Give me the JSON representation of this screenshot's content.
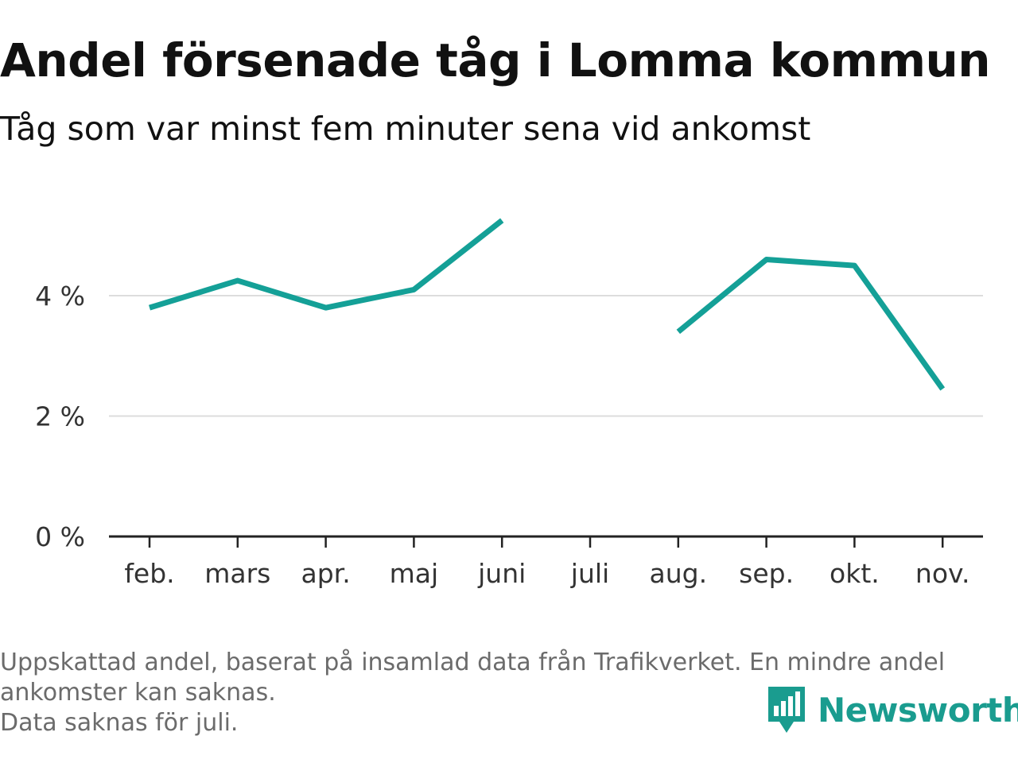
{
  "header": {
    "title": "Andel försenade tåg i Lomma kommun",
    "subtitle": "Tåg som var minst fem minuter sena vid ankomst"
  },
  "footnote": {
    "line1": "Uppskattad andel, baserat på insamlad data från Trafikverket. En mindre andel",
    "line2": "ankomster kan saknas.",
    "line3": "Data saknas för juli."
  },
  "brand": {
    "name": "Newsworthy",
    "icon": "newsworthy-logo-icon",
    "color": "#1a9c8f"
  },
  "colors": {
    "line": "#14a097",
    "grid": "#dddddd",
    "axis": "#222222"
  },
  "chart_data": {
    "type": "line",
    "title": "Andel försenade tåg i Lomma kommun",
    "subtitle": "Tåg som var minst fem minuter sena vid ankomst",
    "categories": [
      "feb.",
      "mars",
      "apr.",
      "maj",
      "juni",
      "juli",
      "aug.",
      "sep.",
      "okt.",
      "nov."
    ],
    "series": [
      {
        "values": [
          3.8,
          4.25,
          3.8,
          4.1,
          5.25,
          null,
          3.4,
          4.6,
          4.5,
          2.45
        ]
      }
    ],
    "yticks": [
      0,
      2,
      4
    ],
    "ytick_labels": [
      "0 %",
      "2 %",
      "4 %"
    ],
    "ylim": [
      0,
      5.4
    ],
    "grid": true,
    "legend": "none"
  }
}
